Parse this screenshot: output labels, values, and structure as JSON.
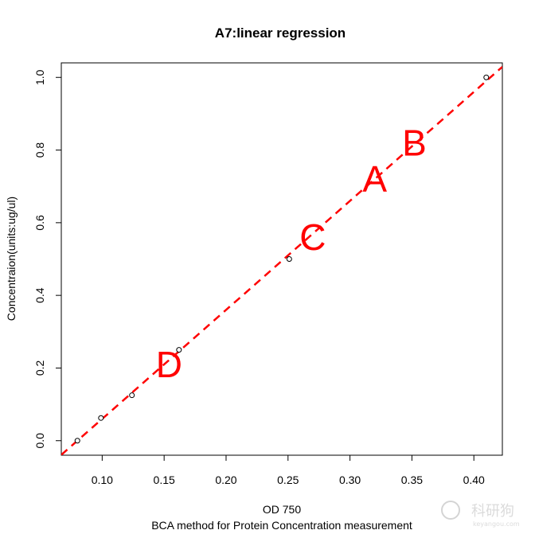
{
  "chart_data": {
    "type": "scatter",
    "title": "A7:linear regression",
    "xlabel": "OD 750",
    "xlabel_sub": "BCA method for Protein Concentration measurement",
    "ylabel": "Concentraion(units:ug/ul)",
    "xlim": [
      0.067,
      0.423
    ],
    "ylim": [
      -0.04,
      1.04
    ],
    "x_ticks": [
      0.1,
      0.15,
      0.2,
      0.25,
      0.3,
      0.35,
      0.4
    ],
    "x_tick_labels": [
      "0.10",
      "0.15",
      "0.20",
      "0.25",
      "0.30",
      "0.35",
      "0.40"
    ],
    "y_ticks": [
      0.0,
      0.2,
      0.4,
      0.6,
      0.8,
      1.0
    ],
    "y_tick_labels": [
      "0.0",
      "0.2",
      "0.4",
      "0.6",
      "0.8",
      "1.0"
    ],
    "grid": false,
    "points": [
      {
        "x": 0.08,
        "y": 0.0
      },
      {
        "x": 0.099,
        "y": 0.0625
      },
      {
        "x": 0.124,
        "y": 0.125
      },
      {
        "x": 0.162,
        "y": 0.25
      },
      {
        "x": 0.251,
        "y": 0.5
      },
      {
        "x": 0.41,
        "y": 1.0
      }
    ],
    "regression_line": {
      "slope": 3.0,
      "intercept": -0.24,
      "color": "#ff0000",
      "style": "dashed"
    },
    "annotations": [
      {
        "text": "B",
        "x": 0.352,
        "y": 0.82
      },
      {
        "text": "A",
        "x": 0.32,
        "y": 0.72
      },
      {
        "text": "C",
        "x": 0.27,
        "y": 0.56
      },
      {
        "text": "D",
        "x": 0.154,
        "y": 0.21
      }
    ],
    "annotation_color": "#ff0000"
  },
  "watermark": {
    "main": "科研狗",
    "sub": "keyangou.com"
  }
}
